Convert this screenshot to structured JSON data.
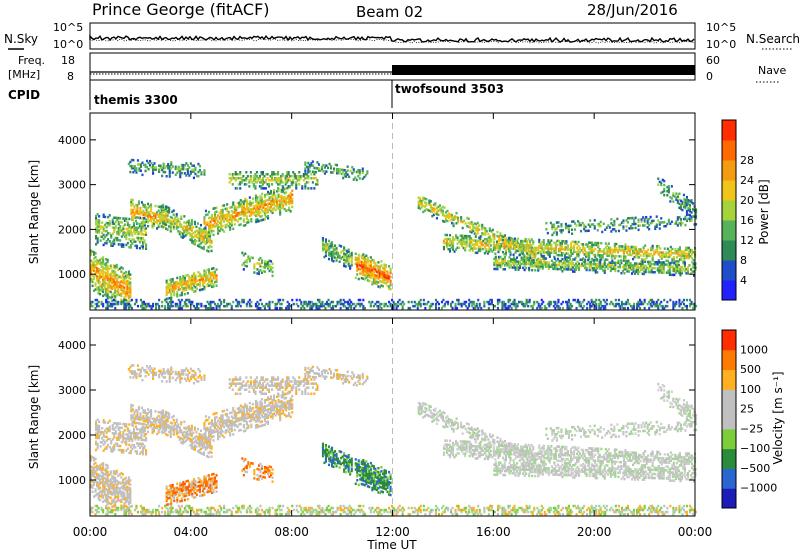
{
  "header": {
    "station": "Prince George (fitACF)",
    "beam": "Beam 02",
    "date": "28/Jun/2016"
  },
  "colors": {
    "power": [
      "#2222ff",
      "#1f4fc8",
      "#2e8b57",
      "#56b35a",
      "#a6d23c",
      "#f0c419",
      "#f39c12",
      "#ff6a00",
      "#ff2d00"
    ],
    "velocity": [
      "#1c1cb8",
      "#2a66d1",
      "#2a8c3a",
      "#7ccd3a",
      "#c0c0c0",
      "#c0c0c0",
      "#ffb020",
      "#ff7a00",
      "#ff2d00"
    ]
  },
  "chart_data": [
    {
      "type": "line",
      "name": "noise-panel",
      "left_label": "N.Sky",
      "right_label": "N.Search",
      "y_ticks_left": [
        "10^5",
        "10^0"
      ],
      "y_ticks_right": [
        "10^5",
        "10^0"
      ]
    },
    {
      "type": "line",
      "name": "freq-nave-panel",
      "left_label_top": "Freq.",
      "left_label_bottom": "[MHz]",
      "right_label": "Nave",
      "y_ticks_left": [
        "18",
        "8"
      ],
      "y_ticks_right": [
        "60",
        "0"
      ]
    },
    {
      "type": "table",
      "name": "cpid-panel",
      "label": "CPID",
      "segments": [
        {
          "name": "themis 3300",
          "start_hour": 0,
          "end_hour": 12
        },
        {
          "name": "twofsound 3503",
          "start_hour": 12,
          "end_hour": 24
        }
      ]
    },
    {
      "type": "heatmap",
      "name": "power-panel",
      "ylabel": "Slant Range [km]",
      "y_ticks": [
        1000,
        2000,
        3000,
        4000
      ],
      "ylim": [
        200,
        4600
      ],
      "colorbar_label": "Power [dB]",
      "colorbar_ticks": [
        "4",
        "8",
        "12",
        "16",
        "20",
        "24",
        "28"
      ]
    },
    {
      "type": "heatmap",
      "name": "velocity-panel",
      "ylabel": "Slant Range [km]",
      "y_ticks": [
        1000,
        2000,
        3000,
        4000
      ],
      "ylim": [
        200,
        4600
      ],
      "colorbar_label": "Velocity [m s⁻¹]",
      "colorbar_ticks": [
        "1000",
        "500",
        "100",
        "25",
        "−25",
        "−100",
        "−500",
        "−1000"
      ]
    }
  ],
  "x_axis": {
    "label": "Time UT",
    "ticks": [
      "00:00",
      "04:00",
      "08:00",
      "12:00",
      "16:00",
      "20:00",
      "00:00"
    ],
    "range_hours": [
      0,
      24
    ]
  }
}
